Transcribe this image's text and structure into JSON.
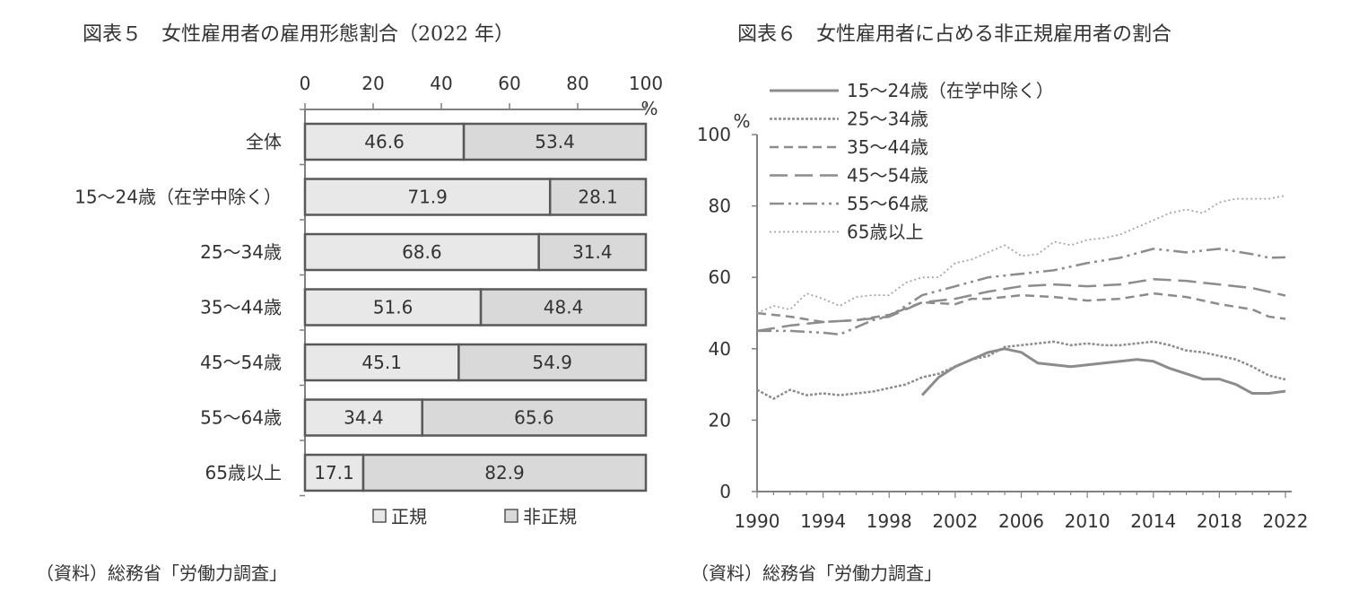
{
  "chart_data": [
    {
      "type": "bar",
      "stacked": true,
      "orientation": "horizontal",
      "title": "図表５　女性雇用者の雇用形態割合（2022 年）",
      "source": "（資料）総務省「労働力調査」",
      "unit": "%",
      "xlim": [
        0,
        100
      ],
      "xticks": [
        "0",
        "20",
        "40",
        "60",
        "80",
        "100"
      ],
      "categories": [
        "全体",
        "15～24歳（在学中除く）",
        "25～34歳",
        "35～44歳",
        "45～54歳",
        "55～64歳",
        "65歳以上"
      ],
      "series": [
        {
          "name": "正規",
          "color": "#e8e8e8",
          "values": [
            46.6,
            71.9,
            68.6,
            51.6,
            45.1,
            34.4,
            17.1
          ],
          "labels": [
            "46.6",
            "71.9",
            "68.6",
            "51.6",
            "45.1",
            "34.4",
            "17.1"
          ]
        },
        {
          "name": "非正規",
          "color": "#d9d9d9",
          "values": [
            53.4,
            28.1,
            31.4,
            48.4,
            54.9,
            65.6,
            82.9
          ],
          "labels": [
            "53.4",
            "28.1",
            "31.4",
            "48.4",
            "54.9",
            "65.6",
            "82.9"
          ]
        }
      ],
      "legend_position": "bottom"
    },
    {
      "type": "line",
      "title": "図表６　女性雇用者に占める非正規雇用者の割合",
      "source": "（資料）総務省「労働力調査」",
      "unit": "%",
      "ylim": [
        0,
        100
      ],
      "xlim": [
        1990,
        2022
      ],
      "yticks": [
        "0",
        "20",
        "40",
        "60",
        "80",
        "100"
      ],
      "xticks": [
        "1990",
        "1994",
        "1998",
        "2002",
        "2006",
        "2010",
        "2014",
        "2018",
        "2022"
      ],
      "legend_position": "top-left",
      "series": [
        {
          "name": "15～24歳（在学中除く）",
          "style": "solid",
          "color": "#8c8c8c",
          "x": [
            2000,
            2001,
            2002,
            2003,
            2004,
            2005,
            2006,
            2007,
            2008,
            2009,
            2010,
            2011,
            2012,
            2013,
            2014,
            2015,
            2016,
            2017,
            2018,
            2019,
            2020,
            2021,
            2022
          ],
          "y": [
            27,
            32,
            35,
            37,
            39,
            40,
            39,
            36,
            35.5,
            35,
            35.5,
            36,
            36.5,
            37,
            36.5,
            34.5,
            33,
            31.5,
            31.5,
            30,
            27.5,
            27.5,
            28.1
          ]
        },
        {
          "name": "25～34歳",
          "style": "dot-dense",
          "color": "#8c8c8c",
          "x": [
            1990,
            1991,
            1992,
            1993,
            1994,
            1995,
            1996,
            1997,
            1998,
            1999,
            2000,
            2001,
            2002,
            2003,
            2004,
            2005,
            2006,
            2007,
            2008,
            2009,
            2010,
            2011,
            2012,
            2013,
            2014,
            2015,
            2016,
            2017,
            2018,
            2019,
            2020,
            2021,
            2022
          ],
          "y": [
            28.5,
            26,
            28.5,
            27,
            27.5,
            27,
            27.5,
            28,
            29,
            30,
            32,
            33,
            35,
            37,
            38,
            40.5,
            41,
            41.5,
            42,
            41,
            41.5,
            41,
            41,
            41.5,
            42,
            41,
            39.5,
            39,
            38,
            37,
            35,
            32.5,
            31.4
          ]
        },
        {
          "name": "35～44歳",
          "style": "dash-short",
          "color": "#8c8c8c",
          "x": [
            1990,
            1992,
            1994,
            1996,
            1998,
            2000,
            2002,
            2003,
            2004,
            2006,
            2008,
            2010,
            2012,
            2014,
            2016,
            2018,
            2020,
            2021,
            2022
          ],
          "y": [
            50,
            49,
            47.5,
            48,
            49.5,
            53,
            52.5,
            54,
            54,
            55,
            54.5,
            53.5,
            54,
            55.5,
            54.5,
            52.5,
            51,
            49,
            48.4
          ]
        },
        {
          "name": "45～54歳",
          "style": "dash-long",
          "color": "#8c8c8c",
          "x": [
            1990,
            1992,
            1994,
            1996,
            1998,
            2000,
            2002,
            2004,
            2006,
            2008,
            2010,
            2012,
            2014,
            2016,
            2018,
            2020,
            2022
          ],
          "y": [
            45,
            46.5,
            47.5,
            48,
            49,
            53,
            54,
            56,
            57.5,
            58,
            57.5,
            58,
            59.5,
            59,
            58,
            57,
            54.9
          ]
        },
        {
          "name": "55～64歳",
          "style": "dash-dot-dot",
          "color": "#8c8c8c",
          "x": [
            1990,
            1992,
            1994,
            1995,
            1996,
            1997,
            1998,
            1999,
            2000,
            2002,
            2004,
            2006,
            2008,
            2010,
            2012,
            2014,
            2016,
            2018,
            2020,
            2021,
            2022
          ],
          "y": [
            45,
            45,
            44.5,
            44,
            46,
            48,
            49,
            52,
            55,
            57.5,
            60,
            61,
            62,
            64,
            65.5,
            68,
            67,
            68,
            66.5,
            65.5,
            65.6
          ]
        },
        {
          "name": "65歳以上",
          "style": "dot-fine",
          "color": "#a6a6a6",
          "x": [
            1990,
            1991,
            1992,
            1993,
            1994,
            1995,
            1996,
            1997,
            1998,
            1999,
            2000,
            2001,
            2002,
            2003,
            2004,
            2005,
            2006,
            2007,
            2008,
            2009,
            2010,
            2011,
            2012,
            2013,
            2014,
            2015,
            2016,
            2017,
            2018,
            2019,
            2020,
            2021,
            2022
          ],
          "y": [
            50,
            52,
            51,
            55.5,
            54,
            52,
            54.5,
            55,
            55,
            58.5,
            60,
            60,
            64,
            65,
            67,
            69,
            66,
            66.5,
            70,
            69,
            70.5,
            71,
            72,
            74,
            76,
            78,
            79,
            78,
            81,
            82,
            82,
            82,
            82.9
          ]
        }
      ]
    }
  ]
}
